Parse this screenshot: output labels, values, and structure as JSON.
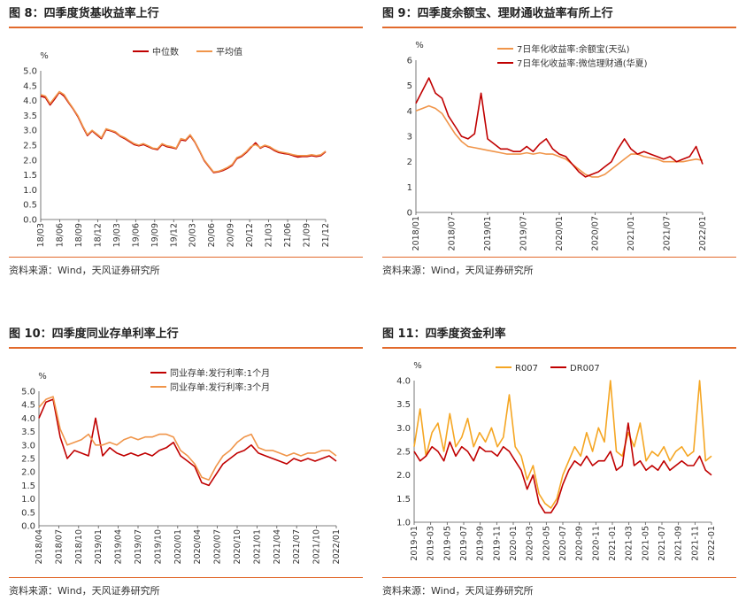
{
  "panels": [
    {
      "title": "图 8：四季度货基收益率上行",
      "source": "资料来源：Wind，天风证券研究所"
    },
    {
      "title": "图 9：四季度余额宝、理财通收益率有所上行",
      "source": "资料来源：Wind，天风证券研究所"
    },
    {
      "title": "图 10：四季度同业存单利率上行",
      "source": "资料来源：Wind，天风证券研究所"
    },
    {
      "title": "图 11：四季度资金利率",
      "source": "资料来源：Wind，天风证券研究所"
    }
  ],
  "colors": {
    "dark_red": "#c00000",
    "orange": "#f0954a",
    "orange2": "#f5a623",
    "rule": "#e26a2c"
  },
  "chart_data": [
    {
      "type": "line",
      "ylabel": "%",
      "ylim": [
        0,
        5
      ],
      "yticks": [
        "0.0",
        "0.5",
        "1.0",
        "1.5",
        "2.0",
        "2.5",
        "3.0",
        "3.5",
        "4.0",
        "4.5",
        "5.0"
      ],
      "xticks": [
        "18/03",
        "18/06",
        "18/09",
        "18/12",
        "19/03",
        "19/06",
        "19/09",
        "19/12",
        "20/03",
        "20/06",
        "20/09",
        "20/12",
        "21/03",
        "21/06",
        "21/09",
        "21/12"
      ],
      "legend_position": "top-center",
      "series": [
        {
          "name": "中位数",
          "color": "#c00000",
          "values": [
            4.15,
            4.1,
            3.85,
            4.05,
            4.28,
            4.15,
            3.92,
            3.7,
            3.45,
            3.12,
            2.82,
            2.98,
            2.85,
            2.72,
            3.02,
            2.98,
            2.92,
            2.8,
            2.72,
            2.62,
            2.52,
            2.48,
            2.52,
            2.45,
            2.38,
            2.35,
            2.52,
            2.45,
            2.42,
            2.38,
            2.68,
            2.65,
            2.82,
            2.6,
            2.3,
            1.98,
            1.78,
            1.58,
            1.6,
            1.65,
            1.72,
            1.82,
            2.05,
            2.12,
            2.25,
            2.42,
            2.58,
            2.4,
            2.48,
            2.42,
            2.32,
            2.25,
            2.22,
            2.2,
            2.15,
            2.1,
            2.12,
            2.12,
            2.15,
            2.12,
            2.15,
            2.28
          ]
        },
        {
          "name": "平均值",
          "color": "#f0954a",
          "values": [
            4.2,
            4.15,
            3.9,
            4.1,
            4.3,
            4.2,
            3.95,
            3.72,
            3.48,
            3.15,
            2.85,
            3.0,
            2.88,
            2.75,
            3.05,
            3.0,
            2.95,
            2.82,
            2.75,
            2.65,
            2.55,
            2.5,
            2.55,
            2.48,
            2.4,
            2.38,
            2.55,
            2.48,
            2.45,
            2.4,
            2.72,
            2.68,
            2.85,
            2.62,
            2.32,
            2.0,
            1.8,
            1.6,
            1.62,
            1.68,
            1.75,
            1.85,
            2.08,
            2.15,
            2.28,
            2.45,
            2.52,
            2.42,
            2.5,
            2.45,
            2.35,
            2.28,
            2.25,
            2.22,
            2.18,
            2.15,
            2.15,
            2.15,
            2.18,
            2.15,
            2.18,
            2.3
          ]
        }
      ]
    },
    {
      "type": "line",
      "ylabel": "%",
      "ylim": [
        0,
        6
      ],
      "yticks": [
        "0",
        "1",
        "2",
        "3",
        "4",
        "5",
        "6"
      ],
      "xticks": [
        "2018/01",
        "2018/07",
        "2019/01",
        "2019/07",
        "2020/01",
        "2020/07",
        "2021/01",
        "2021/07",
        "2022/01"
      ],
      "legend_position": "top-center",
      "series": [
        {
          "name": "7日年化收益率:余额宝(天弘)",
          "color": "#f0954a",
          "values": [
            4.0,
            4.1,
            4.2,
            4.1,
            3.9,
            3.5,
            3.1,
            2.8,
            2.6,
            2.55,
            2.5,
            2.45,
            2.4,
            2.35,
            2.3,
            2.3,
            2.3,
            2.35,
            2.3,
            2.35,
            2.3,
            2.3,
            2.2,
            2.1,
            1.9,
            1.7,
            1.5,
            1.4,
            1.4,
            1.5,
            1.7,
            1.9,
            2.1,
            2.3,
            2.3,
            2.2,
            2.15,
            2.1,
            2.0,
            2.0,
            2.0,
            2.0,
            2.05,
            2.1,
            2.05
          ]
        },
        {
          "name": "7日年化收益率:微信理财通(华夏)",
          "color": "#c00000",
          "values": [
            4.3,
            4.8,
            5.3,
            4.7,
            4.5,
            3.8,
            3.4,
            3.0,
            2.9,
            3.1,
            4.7,
            2.9,
            2.7,
            2.5,
            2.5,
            2.4,
            2.4,
            2.6,
            2.4,
            2.7,
            2.9,
            2.5,
            2.3,
            2.2,
            1.9,
            1.6,
            1.4,
            1.5,
            1.6,
            1.8,
            2.0,
            2.5,
            2.9,
            2.5,
            2.3,
            2.4,
            2.3,
            2.2,
            2.1,
            2.2,
            2.0,
            2.1,
            2.2,
            2.6,
            1.9
          ]
        }
      ]
    },
    {
      "type": "line",
      "ylabel": "%",
      "ylim": [
        0,
        5
      ],
      "yticks": [
        "0.0",
        "0.5",
        "1.0",
        "1.5",
        "2.0",
        "2.5",
        "3.0",
        "3.5",
        "4.0",
        "4.5",
        "5.0"
      ],
      "xticks": [
        "2018/04",
        "2018/07",
        "2018/10",
        "2019/01",
        "2019/04",
        "2019/07",
        "2019/10",
        "2020/01",
        "2020/04",
        "2020/07",
        "2020/10",
        "2021/01",
        "2021/04",
        "2021/07",
        "2021/10",
        "2022/01"
      ],
      "legend_position": "top-center",
      "series": [
        {
          "name": "同业存单:发行利率:1个月",
          "color": "#c00000",
          "values": [
            4.0,
            4.6,
            4.7,
            3.3,
            2.5,
            2.8,
            2.7,
            2.6,
            4.0,
            2.6,
            2.9,
            2.7,
            2.6,
            2.7,
            2.6,
            2.7,
            2.6,
            2.8,
            2.9,
            3.1,
            2.6,
            2.4,
            2.2,
            1.6,
            1.5,
            1.9,
            2.3,
            2.5,
            2.7,
            2.8,
            3.0,
            2.7,
            2.6,
            2.5,
            2.4,
            2.3,
            2.5,
            2.4,
            2.5,
            2.4,
            2.5,
            2.6,
            2.4
          ]
        },
        {
          "name": "同业存单:发行利率:3个月",
          "color": "#f0954a",
          "values": [
            4.4,
            4.7,
            4.8,
            3.6,
            3.0,
            3.1,
            3.2,
            3.4,
            3.0,
            3.0,
            3.1,
            3.0,
            3.2,
            3.3,
            3.2,
            3.3,
            3.3,
            3.4,
            3.4,
            3.3,
            2.8,
            2.6,
            2.3,
            1.8,
            1.7,
            2.2,
            2.6,
            2.8,
            3.1,
            3.3,
            3.4,
            2.9,
            2.8,
            2.8,
            2.7,
            2.6,
            2.7,
            2.6,
            2.7,
            2.7,
            2.8,
            2.8,
            2.6
          ]
        }
      ]
    },
    {
      "type": "line",
      "ylabel": "%",
      "ylim": [
        1.0,
        4.0
      ],
      "yticks": [
        "1.0",
        "1.5",
        "2.0",
        "2.5",
        "3.0",
        "3.5",
        "4.0"
      ],
      "xticks": [
        "2019-01",
        "2019-03",
        "2019-05",
        "2019-07",
        "2019-09",
        "2019-11",
        "2020-01",
        "2020-03",
        "2020-05",
        "2020-07",
        "2020-09",
        "2020-11",
        "2021-01",
        "2021-03",
        "2021-05",
        "2021-07",
        "2021-09",
        "2021-11",
        "2022-01"
      ],
      "legend_position": "top-center",
      "series": [
        {
          "name": "R007",
          "color": "#f5a623",
          "values": [
            2.6,
            3.4,
            2.4,
            2.9,
            3.1,
            2.5,
            3.3,
            2.6,
            2.8,
            3.2,
            2.6,
            2.9,
            2.7,
            3.0,
            2.6,
            2.8,
            3.7,
            2.6,
            2.4,
            1.9,
            2.2,
            1.6,
            1.4,
            1.3,
            1.5,
            2.0,
            2.3,
            2.6,
            2.4,
            2.9,
            2.5,
            3.0,
            2.7,
            4.0,
            2.5,
            2.4,
            2.9,
            2.6,
            3.1,
            2.3,
            2.5,
            2.4,
            2.6,
            2.3,
            2.5,
            2.6,
            2.4,
            2.5,
            4.0,
            2.3,
            2.4
          ]
        },
        {
          "name": "DR007",
          "color": "#c00000",
          "values": [
            2.5,
            2.3,
            2.4,
            2.6,
            2.5,
            2.3,
            2.7,
            2.4,
            2.6,
            2.5,
            2.3,
            2.6,
            2.5,
            2.5,
            2.4,
            2.6,
            2.5,
            2.3,
            2.1,
            1.7,
            2.0,
            1.4,
            1.2,
            1.2,
            1.4,
            1.8,
            2.1,
            2.3,
            2.2,
            2.4,
            2.2,
            2.3,
            2.3,
            2.5,
            2.1,
            2.2,
            3.1,
            2.2,
            2.3,
            2.1,
            2.2,
            2.1,
            2.3,
            2.1,
            2.2,
            2.3,
            2.2,
            2.2,
            2.4,
            2.1,
            2.0
          ]
        }
      ]
    }
  ]
}
